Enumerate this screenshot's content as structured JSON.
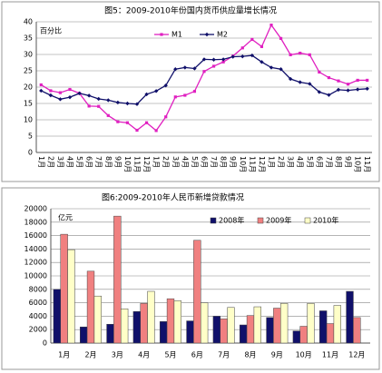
{
  "chart_data": [
    {
      "type": "line",
      "title": "图5：2009-2010年份国内货币供应量增长情况",
      "y_label": "百分比",
      "categories": [
        "1月",
        "2月",
        "3月",
        "4月",
        "5月",
        "6月",
        "7月",
        "8月",
        "9月",
        "10月",
        "11月",
        "12月",
        "1月",
        "2月",
        "3月",
        "4月",
        "5月",
        "6月",
        "7月",
        "8月",
        "9月",
        "10月",
        "11月",
        "12月",
        "1月",
        "2月",
        "3月",
        "4月",
        "5月",
        "6月",
        "7月",
        "8月",
        "9月",
        "10月",
        "11月"
      ],
      "series": [
        {
          "name": "M1",
          "color": "#e020c0",
          "values": [
            20.7,
            18.9,
            18.3,
            19.3,
            18.1,
            14.2,
            14.1,
            11.3,
            9.4,
            9.1,
            6.8,
            9.1,
            6.7,
            10.9,
            17.0,
            17.5,
            18.7,
            24.8,
            26.4,
            27.7,
            29.5,
            32.0,
            34.6,
            32.4,
            39.0,
            34.9,
            29.9,
            30.4,
            29.9,
            24.6,
            22.9,
            21.9,
            20.9,
            22.1,
            22.1
          ]
        },
        {
          "name": "M2",
          "color": "#10106a",
          "values": [
            18.9,
            17.5,
            16.3,
            16.9,
            18.1,
            17.4,
            16.4,
            16.0,
            15.3,
            15.0,
            14.8,
            17.8,
            18.8,
            20.5,
            25.5,
            26.0,
            25.7,
            28.5,
            28.4,
            28.5,
            29.3,
            29.4,
            29.7,
            27.7,
            26.0,
            25.5,
            22.5,
            21.5,
            21.0,
            18.5,
            17.6,
            19.2,
            19.0,
            19.3,
            19.5
          ]
        }
      ],
      "ylim": [
        0,
        40
      ],
      "yticks": [
        0,
        5,
        10,
        15,
        20,
        25,
        30,
        35,
        40
      ],
      "grid": true
    },
    {
      "type": "bar",
      "title": "图6:2009-2010年人民币新增贷款情况",
      "y_label": "亿元",
      "categories": [
        "1月",
        "2月",
        "3月",
        "4月",
        "5月",
        "6月",
        "7月",
        "8月",
        "9月",
        "10月",
        "11月",
        "12月"
      ],
      "series": [
        {
          "name": "2008年",
          "color": "#10106a",
          "values": [
            8000,
            2400,
            2800,
            4700,
            3200,
            3300,
            4000,
            2700,
            3800,
            1800,
            4800,
            7700
          ]
        },
        {
          "name": "2009年",
          "color": "#f08080",
          "values": [
            16200,
            10700,
            18900,
            5900,
            6600,
            15300,
            3600,
            4100,
            5200,
            2500,
            2900,
            3800
          ]
        },
        {
          "name": "2010年",
          "color": "#ffffc8",
          "values": [
            13900,
            7000,
            5100,
            7700,
            6300,
            6000,
            5300,
            5400,
            5900,
            5900,
            5600,
            null
          ]
        }
      ],
      "ylim": [
        0,
        20000
      ],
      "yticks": [
        0,
        2000,
        4000,
        6000,
        8000,
        10000,
        12000,
        14000,
        16000,
        18000,
        20000
      ],
      "grid": true
    }
  ]
}
